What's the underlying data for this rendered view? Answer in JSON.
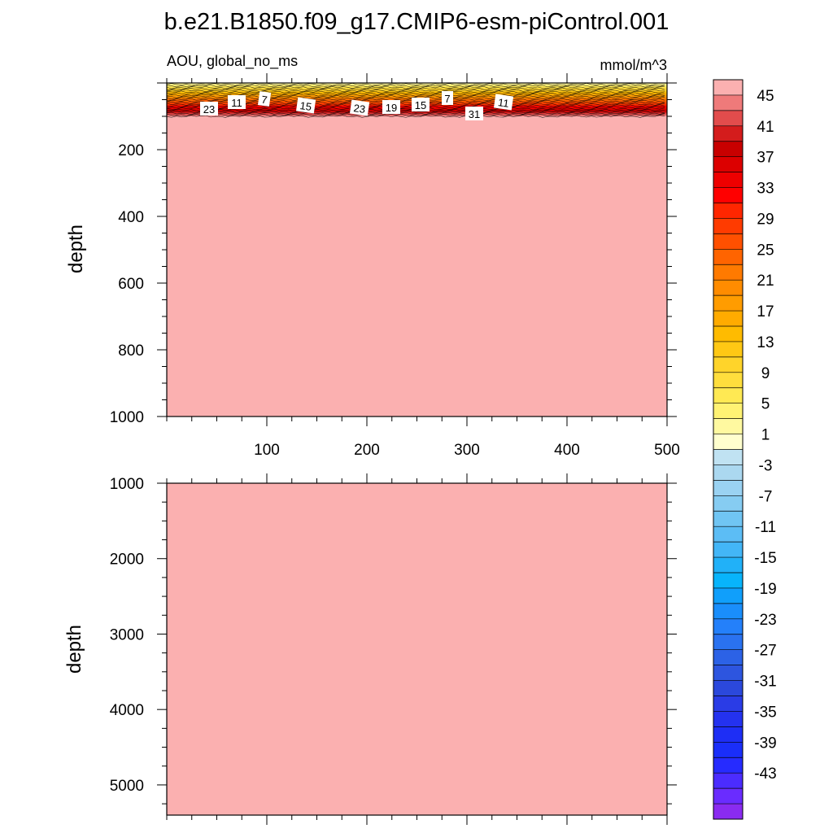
{
  "chart_data": [
    {
      "type": "heatmap",
      "title": "b.e21.B1850.f09_g17.CMIP6-esm-piControl.001",
      "subtitle_left": "AOU, global_no_ms",
      "subtitle_right": "mmol/m^3",
      "xlabel": "",
      "ylabel": "depth",
      "xlim": [
        0,
        500
      ],
      "ylim": [
        1000,
        0
      ],
      "x_ticks": [
        100,
        200,
        300,
        400,
        500
      ],
      "y_ticks": [
        200,
        400,
        600,
        800,
        1000
      ],
      "y_tick_labels": [
        "200",
        "400",
        "600",
        "800",
        "1000"
      ],
      "x_tick_labels": [
        "100",
        "200",
        "300",
        "400",
        "500"
      ],
      "contour_labels": [
        "23",
        "11",
        "7",
        "15",
        "23",
        "19",
        "15",
        "7",
        "31",
        "11"
      ],
      "bands": [
        {
          "depth_top": 0,
          "depth_bottom": 25,
          "value": 1
        },
        {
          "depth_top": 25,
          "depth_bottom": 45,
          "value": 9
        },
        {
          "depth_top": 45,
          "depth_bottom": 65,
          "value": 19
        },
        {
          "depth_top": 65,
          "depth_bottom": 80,
          "value": 29
        },
        {
          "depth_top": 80,
          "depth_bottom": 100,
          "value": 39
        },
        {
          "depth_top": 100,
          "depth_bottom": 1000,
          "value": 47
        }
      ]
    },
    {
      "type": "heatmap",
      "xlabel": "",
      "ylabel": "depth",
      "xlim": [
        0,
        500
      ],
      "ylim": [
        5400,
        1000
      ],
      "y_ticks": [
        1000,
        2000,
        3000,
        4000,
        5000
      ],
      "y_tick_labels": [
        "1000",
        "2000",
        "3000",
        "4000",
        "5000"
      ],
      "x_ticks": [
        100,
        200,
        300,
        400,
        500
      ],
      "bands": [
        {
          "depth_top": 1000,
          "depth_bottom": 5400,
          "value": 47
        }
      ]
    }
  ],
  "colorbar": {
    "tick_labels": [
      "45",
      "41",
      "37",
      "33",
      "29",
      "25",
      "21",
      "17",
      "13",
      "9",
      "5",
      "1",
      "-3",
      "-7",
      "-11",
      "-15",
      "-19",
      "-23",
      "-27",
      "-31",
      "-35",
      "-39",
      "-43"
    ],
    "colors": [
      "#fbb0b0",
      "#ef7a7a",
      "#e24c4c",
      "#d41c1c",
      "#c80000",
      "#dc0000",
      "#ee0000",
      "#ff0000",
      "#ff2600",
      "#ff3b00",
      "#ff5000",
      "#ff6400",
      "#ff7a00",
      "#ff8c00",
      "#ff9c00",
      "#ffab00",
      "#ffbb00",
      "#ffc814",
      "#ffd42a",
      "#ffde3d",
      "#ffe953",
      "#fff273",
      "#fff9a0",
      "#ffffce",
      "#c0e2f2",
      "#abd8f0",
      "#9ad2f2",
      "#86ccf2",
      "#70c5f3",
      "#5cbdf5",
      "#43b6f7",
      "#21b1f8",
      "#08b4fb",
      "#109ffb",
      "#1a8efb",
      "#2480fa",
      "#2a72f0",
      "#2c62e6",
      "#2d55df",
      "#2b48dc",
      "#2a3ce6",
      "#2432ef",
      "#1e2ef5",
      "#1a2ef9",
      "#262bff",
      "#4b2cff",
      "#6a2cff",
      "#8a2bf0"
    ]
  }
}
